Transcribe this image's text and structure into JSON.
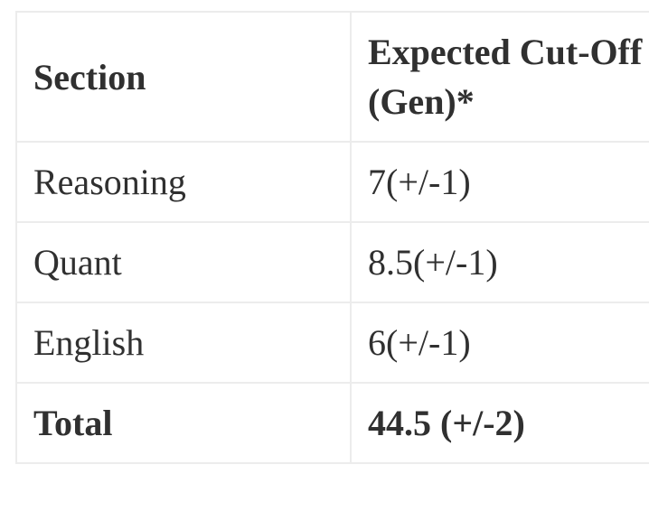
{
  "chart_data": {
    "type": "table",
    "title": "Expected Cut-Off (Gen)",
    "columns": [
      "Section",
      "Expected Cut-Off (Gen)*"
    ],
    "rows": [
      [
        "Reasoning",
        "7(+/-1)"
      ],
      [
        "Quant",
        "8.5(+/-1)"
      ],
      [
        "English",
        "6(+/-1)"
      ],
      [
        "Total",
        "44.5 (+/-2)"
      ]
    ]
  },
  "table": {
    "columns": [
      {
        "key": "section",
        "label": "Section"
      },
      {
        "key": "cutoff",
        "label": "Expected Cut-Off (Gen)*"
      }
    ],
    "rows": [
      {
        "section": "Reasoning",
        "cutoff": "7(+/-1)",
        "emphasis": false
      },
      {
        "section": "Quant",
        "cutoff": "8.5(+/-1)",
        "emphasis": false
      },
      {
        "section": "English",
        "cutoff": "6(+/-1)",
        "emphasis": false
      },
      {
        "section": "Total",
        "cutoff": "44.5 (+/-2)",
        "emphasis": true
      }
    ]
  },
  "colors": {
    "background": "#ffffff",
    "border": "#ececec",
    "text": "#303030"
  }
}
